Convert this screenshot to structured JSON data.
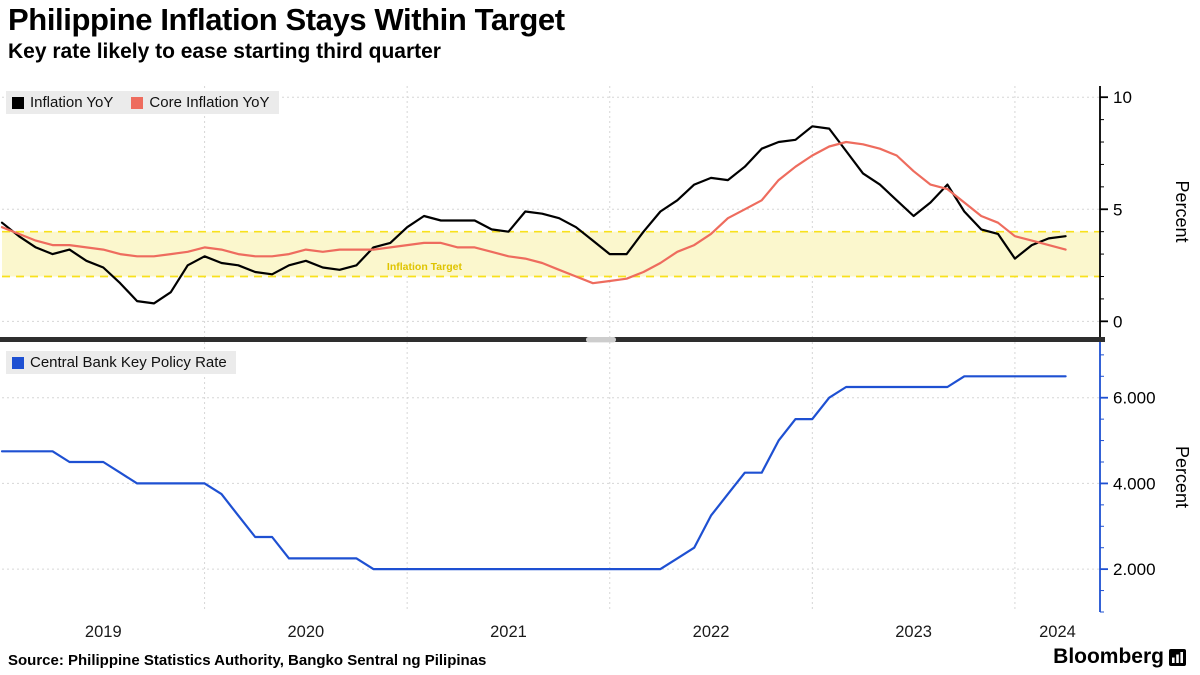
{
  "header": {
    "title": "Philippine Inflation Stays Within Target",
    "subtitle": "Key rate likely to ease starting third quarter"
  },
  "footer": {
    "source": "Source: Philippine Statistics Authority, Bangko Sentral ng Pilipinas",
    "brand": "Bloomberg"
  },
  "colors": {
    "inflation": "#000000",
    "core_inflation": "#ee6c5e",
    "policy_rate": "#1e50d2",
    "target_band_fill": "#fbf7cd",
    "target_band_border": "#f8e11c",
    "target_label": "#dfc400",
    "legend_bg": "#ebebeb",
    "grid": "#d6d6d6",
    "divider": "#2e2e2e",
    "tick_text": "#000000"
  },
  "x_axis": {
    "start": "2019-01",
    "end": "2024-04",
    "year_labels": [
      "2019",
      "2020",
      "2021",
      "2022",
      "2023",
      "2024"
    ]
  },
  "chart_data": [
    {
      "type": "line",
      "panel": "top",
      "ylabel": "Percent",
      "ylim": [
        -0.7,
        10.5
      ],
      "yticks": [
        0,
        5,
        10
      ],
      "ytick_labels": [
        "0",
        "5",
        "10"
      ],
      "minor_tick_step": 1,
      "grid": true,
      "legend_position": "top-left",
      "target_band": {
        "label": "Inflation Target",
        "from": 2,
        "to": 4
      },
      "x_months_start": "2019-01",
      "series": [
        {
          "name": "Inflation YoY",
          "color": "#000000",
          "values": [
            4.4,
            3.8,
            3.3,
            3.0,
            3.2,
            2.7,
            2.4,
            1.7,
            0.9,
            0.8,
            1.3,
            2.5,
            2.9,
            2.6,
            2.5,
            2.2,
            2.1,
            2.5,
            2.7,
            2.4,
            2.3,
            2.5,
            3.3,
            3.5,
            4.2,
            4.7,
            4.5,
            4.5,
            4.5,
            4.1,
            4.0,
            4.9,
            4.8,
            4.6,
            4.2,
            3.6,
            3.0,
            3.0,
            4.0,
            4.9,
            5.4,
            6.1,
            6.4,
            6.3,
            6.9,
            7.7,
            8.0,
            8.1,
            8.7,
            8.6,
            7.6,
            6.6,
            6.1,
            5.4,
            4.7,
            5.3,
            6.1,
            4.9,
            4.1,
            3.9,
            2.8,
            3.4,
            3.7,
            3.8
          ]
        },
        {
          "name": "Core Inflation YoY",
          "color": "#ee6c5e",
          "values": [
            4.2,
            3.9,
            3.6,
            3.4,
            3.4,
            3.3,
            3.2,
            3.0,
            2.9,
            2.9,
            3.0,
            3.1,
            3.3,
            3.2,
            3.0,
            2.9,
            2.9,
            3.0,
            3.2,
            3.1,
            3.2,
            3.2,
            3.2,
            3.3,
            3.4,
            3.5,
            3.5,
            3.3,
            3.3,
            3.1,
            2.9,
            2.8,
            2.6,
            2.3,
            2.0,
            1.7,
            1.8,
            1.9,
            2.2,
            2.6,
            3.1,
            3.4,
            3.9,
            4.6,
            5.0,
            5.4,
            6.3,
            6.9,
            7.4,
            7.8,
            8.0,
            7.9,
            7.7,
            7.4,
            6.7,
            6.1,
            5.9,
            5.3,
            4.7,
            4.4,
            3.8,
            3.6,
            3.4,
            3.2
          ]
        }
      ]
    },
    {
      "type": "line",
      "panel": "bottom",
      "ylabel": "Percent",
      "ylim": [
        1.0,
        7.3
      ],
      "yticks": [
        2,
        4,
        6
      ],
      "ytick_labels": [
        "2.000",
        "4.000",
        "6.000"
      ],
      "minor_tick_step": 0.5,
      "grid": true,
      "legend_position": "top-left",
      "x_months_start": "2019-01",
      "series": [
        {
          "name": "Central Bank Key Policy Rate",
          "color": "#1e50d2",
          "values": [
            4.75,
            4.75,
            4.75,
            4.75,
            4.5,
            4.5,
            4.5,
            4.25,
            4.0,
            4.0,
            4.0,
            4.0,
            4.0,
            3.75,
            3.25,
            2.75,
            2.75,
            2.25,
            2.25,
            2.25,
            2.25,
            2.25,
            2.0,
            2.0,
            2.0,
            2.0,
            2.0,
            2.0,
            2.0,
            2.0,
            2.0,
            2.0,
            2.0,
            2.0,
            2.0,
            2.0,
            2.0,
            2.0,
            2.0,
            2.0,
            2.25,
            2.5,
            3.25,
            3.75,
            4.25,
            4.25,
            5.0,
            5.5,
            5.5,
            6.0,
            6.25,
            6.25,
            6.25,
            6.25,
            6.25,
            6.25,
            6.25,
            6.5,
            6.5,
            6.5,
            6.5,
            6.5,
            6.5,
            6.5
          ]
        }
      ]
    }
  ]
}
